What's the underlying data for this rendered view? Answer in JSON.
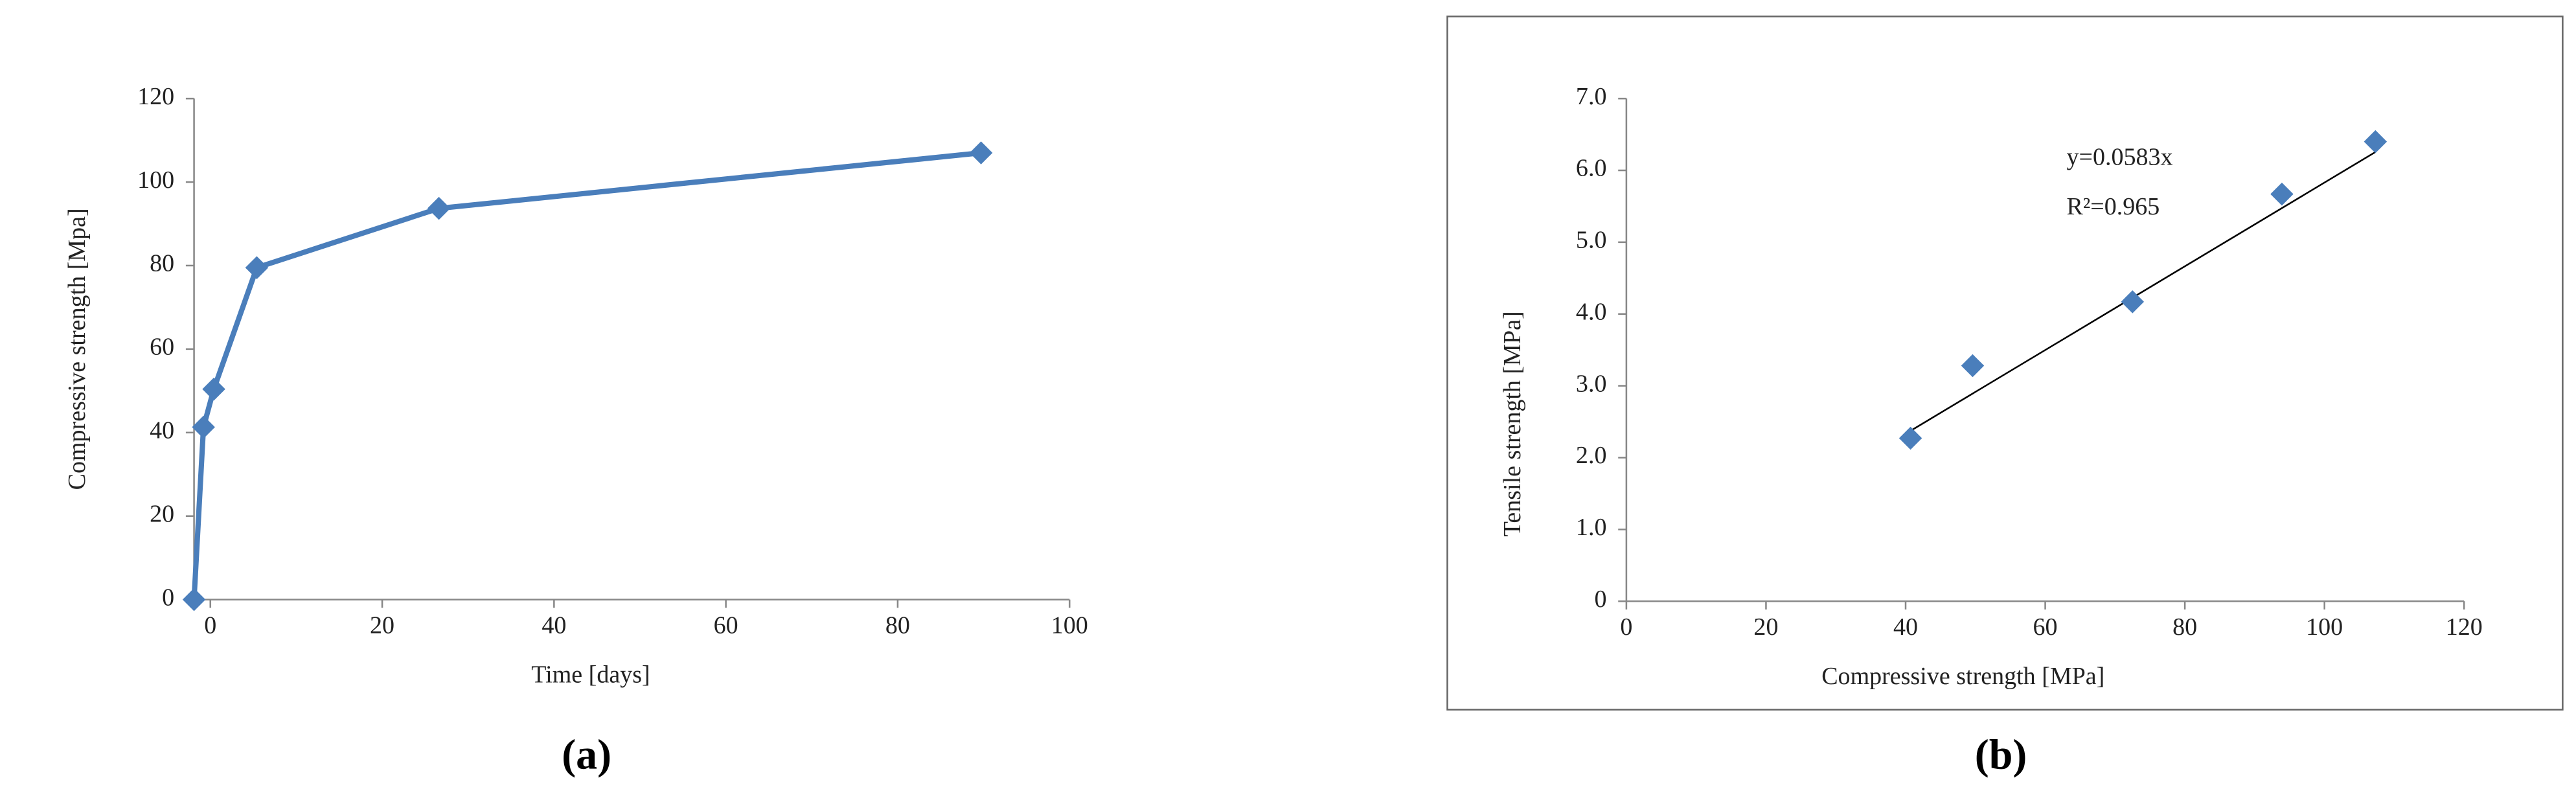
{
  "chart_data": [
    {
      "type": "line",
      "x_label": "Time [days]",
      "y_label": "Compressive strength  [Mpa]",
      "panel_label": "(a)",
      "x": [
        -1.9,
        -0.8,
        0.4,
        5.4,
        26.6,
        89.7
      ],
      "values": [
        0,
        41.3,
        50.4,
        79.5,
        93.7,
        107
      ],
      "color": "#4a7ebb",
      "xlim": [
        -1.9,
        100
      ],
      "xticks": [
        0,
        20,
        40,
        60,
        80,
        100
      ],
      "ylim": [
        0,
        120
      ],
      "yticks": [
        0,
        20,
        40,
        60,
        80,
        100,
        120
      ]
    },
    {
      "type": "scatter",
      "x_label": "Compressive strength [MPa]",
      "y_label": "Tensile strength  [MPa]",
      "panel_label": "(b)",
      "x": [
        40.7,
        49.6,
        72.5,
        93.9,
        107.3
      ],
      "values": [
        2.27,
        3.28,
        4.17,
        5.67,
        6.4
      ],
      "color": "#4a7ebb",
      "trendline": {
        "slope": 0.0583,
        "equation": "y=0.0583x",
        "r2": "R²=0.965"
      },
      "xlim": [
        0,
        120
      ],
      "xticks": [
        0,
        20,
        40,
        60,
        80,
        100,
        120
      ],
      "ylim": [
        0,
        7
      ],
      "yticks": [
        0,
        {
          "value": 1,
          "label": "1.0"
        },
        {
          "value": 2,
          "label": "2.0"
        },
        {
          "value": 3,
          "label": "3.0"
        },
        {
          "value": 4,
          "label": "4.0"
        },
        {
          "value": 5,
          "label": "5.0"
        },
        {
          "value": 6,
          "label": "6.0"
        },
        {
          "value": 7,
          "label": "7.0"
        }
      ]
    }
  ]
}
